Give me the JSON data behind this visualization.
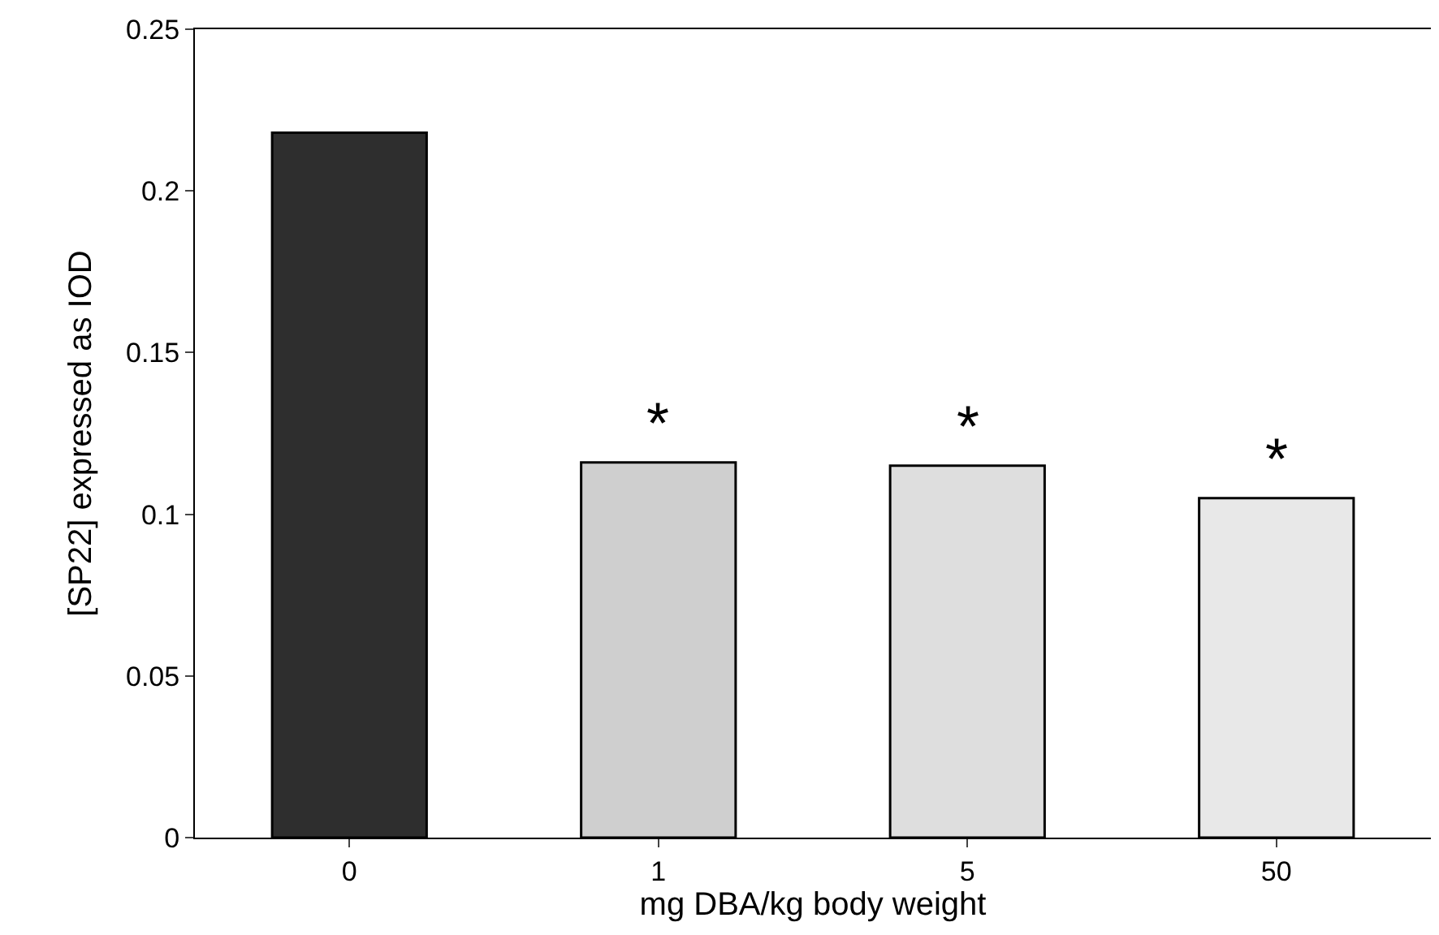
{
  "chart_data": {
    "type": "bar",
    "xlabel": "mg DBA/kg body weight",
    "ylabel": "[SP22] expressed as IOD",
    "categories": [
      "0",
      "1",
      "5",
      "50"
    ],
    "values": [
      0.218,
      0.116,
      0.115,
      0.105
    ],
    "colors": [
      "#2e2e2e",
      "#cfcfcf",
      "#dedede",
      "#e8e8e8"
    ],
    "ylim": [
      0,
      0.25
    ],
    "yticks": [
      0,
      0.05,
      0.1,
      0.15,
      0.2,
      0.25
    ],
    "annotations": [
      {
        "text": "*",
        "x": "1",
        "y": 0.116
      },
      {
        "text": "*",
        "x": "5",
        "y": 0.115
      },
      {
        "text": "*",
        "x": "50",
        "y": 0.105
      }
    ]
  }
}
